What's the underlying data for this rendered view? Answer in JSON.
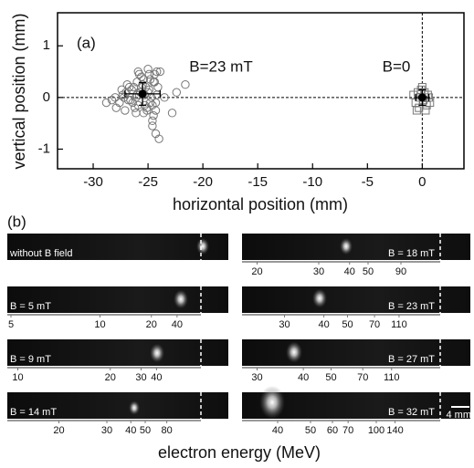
{
  "chart_data": [
    {
      "type": "scatter",
      "x_label": "horizontal position (mm)",
      "y_label": "vertical position (mm)",
      "annotations": [
        "(a)",
        "B=23 mT",
        "B=0"
      ],
      "xlim": [
        -33.25,
        3.8
      ],
      "ylim": [
        -1.38,
        1.64
      ],
      "xticks": [
        -30,
        -25,
        -20,
        -15,
        -10,
        -5,
        0
      ],
      "yticks": [
        -1,
        0,
        1
      ],
      "reference_lines": {
        "x": 0,
        "y": 0
      },
      "series": [
        {
          "marker": "circle",
          "color": "#777",
          "x": [
            -28.8,
            -28.3,
            -28.0,
            -27.6,
            -27.3,
            -27.0,
            -26.8,
            -26.5,
            -26.3,
            -26.1,
            -25.9,
            -25.7,
            -25.5,
            -25.3,
            -25.1,
            -24.9,
            -24.7,
            -24.5,
            -24.3,
            -24.1,
            -27.9,
            -27.4,
            -27.1,
            -26.7,
            -26.4,
            -26.0,
            -25.8,
            -25.4,
            -25.0,
            -24.6,
            -24.4,
            -24.2,
            -26.9,
            -26.2,
            -25.6,
            -25.2,
            -24.8,
            -24.5,
            -26.6,
            -25.9,
            -25.3,
            -24.9,
            -24.3,
            -25.6,
            -25.0,
            -24.4,
            -26.1,
            -25.4,
            -24.8,
            -24.2,
            -25.7,
            -25.1,
            -24.6,
            -23.9,
            -23.5,
            -22.4,
            -21.6,
            -22.8,
            -24.6,
            -24.3,
            -24.0,
            -25.8,
            -27.2,
            -26.0
          ],
          "values": [
            -0.1,
            -0.05,
            0.0,
            -0.1,
            0.05,
            0.1,
            -0.05,
            0.15,
            0.2,
            0.0,
            -0.15,
            0.1,
            0.25,
            0.05,
            -0.2,
            0.15,
            0.0,
            0.3,
            -0.1,
            0.2,
            -0.2,
            0.15,
            -0.25,
            0.2,
            -0.1,
            0.3,
            0.05,
            -0.3,
            0.1,
            -0.15,
            0.45,
            0.05,
            0.25,
            -0.2,
            0.4,
            0.2,
            0.35,
            -0.35,
            -0.05,
            0.5,
            -0.15,
            0.45,
            -0.25,
            0.2,
            0.55,
            0.3,
            -0.3,
            0.35,
            -0.1,
            0.5,
            0.1,
            -0.25,
            -0.45,
            0.5,
            0.0,
            0.1,
            0.25,
            -0.3,
            -0.55,
            -0.7,
            -0.8,
            0.45,
            0.0,
            0.05
          ]
        },
        {
          "marker": "square",
          "color": "#777",
          "x": [
            -0.8,
            -0.6,
            -0.4,
            -0.3,
            -0.1,
            0.1,
            0.2,
            0.4,
            0.5,
            0.7,
            -0.5,
            0.3,
            0.0,
            -0.2,
            0.6
          ],
          "values": [
            0.05,
            -0.1,
            0.1,
            -0.2,
            0.15,
            -0.05,
            0.1,
            -0.15,
            0.05,
            -0.1,
            -0.25,
            -0.25,
            0.2,
            0.0,
            0.0
          ]
        },
        {
          "marker": "mean",
          "color": "#000",
          "x": [
            -25.5,
            0.0
          ],
          "values": [
            0.07,
            0.0
          ],
          "x_err": [
            1.6,
            0.6
          ],
          "y_err": [
            0.22,
            0.15
          ]
        }
      ]
    }
  ],
  "panel_b": {
    "label": "(b)",
    "x_label": "electron energy (MeV)",
    "scale_bar": "4 mm",
    "strips": [
      {
        "label": "without B field"
      },
      {
        "label": "B = 18 mT",
        "ticks": [
          20,
          30,
          40,
          50,
          90
        ]
      },
      {
        "label": "B = 5 mT",
        "ticks": [
          5,
          10,
          20,
          40
        ]
      },
      {
        "label": "B = 23 mT",
        "ticks": [
          30,
          40,
          50,
          70,
          110
        ]
      },
      {
        "label": "B = 9 mT",
        "ticks": [
          10,
          20,
          30,
          40
        ]
      },
      {
        "label": "B = 27 mT",
        "ticks": [
          30,
          40,
          50,
          70,
          110
        ]
      },
      {
        "label": "B = 14 mT",
        "ticks": [
          20,
          30,
          40,
          50,
          80
        ]
      },
      {
        "label": "B = 32 mT",
        "ticks": [
          40,
          50,
          60,
          70,
          100,
          140
        ]
      }
    ]
  }
}
